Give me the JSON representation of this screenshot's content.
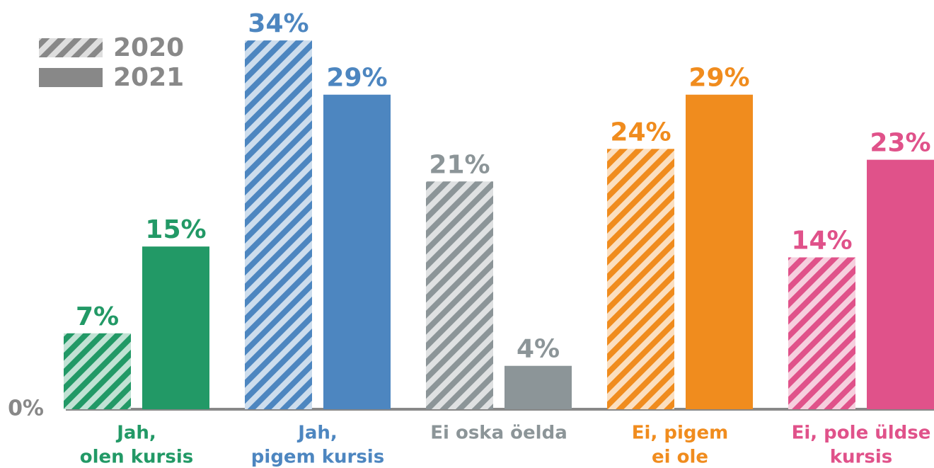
{
  "chart_data": {
    "type": "bar",
    "categories": [
      [
        "Jah,",
        "olen kursis"
      ],
      [
        "Jah,",
        "pigem kursis"
      ],
      [
        "Ei oska öelda"
      ],
      [
        "Ei, pigem",
        "ei ole"
      ],
      [
        "Ei, pole üldse",
        "kursis"
      ]
    ],
    "category_colors": [
      "#229966",
      "#4d86c0",
      "#8c9598",
      "#f08c1e",
      "#e0528a"
    ],
    "series": [
      {
        "name": "2020",
        "color": "#888888",
        "hatched": true,
        "values": [
          7,
          34,
          21,
          24,
          14
        ],
        "value_labels": [
          "7%",
          "34%",
          "21%",
          "24%",
          "14%"
        ]
      },
      {
        "name": "2021",
        "color": "#888888",
        "hatched": false,
        "values": [
          15,
          29,
          4,
          29,
          23
        ],
        "value_labels": [
          "15%",
          "29%",
          "4%",
          "29%",
          "23%"
        ]
      }
    ],
    "ylim": [
      0,
      36
    ],
    "yticks": [
      {
        "value": 0,
        "label": "0%"
      }
    ],
    "grid": false,
    "legend": "top-left"
  }
}
